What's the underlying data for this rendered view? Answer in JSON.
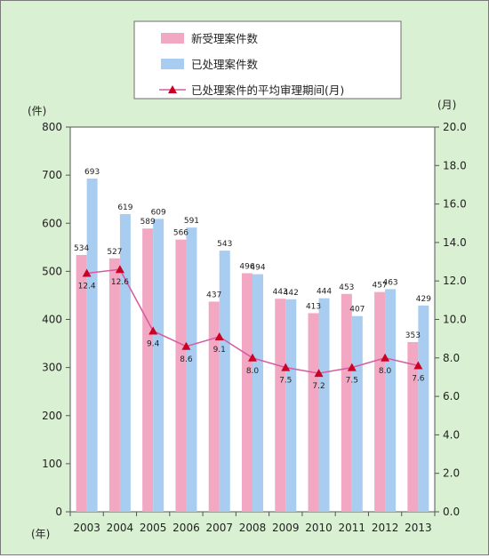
{
  "chart_data": {
    "type": "bar",
    "categories": [
      "2003",
      "2004",
      "2005",
      "2006",
      "2007",
      "2008",
      "2009",
      "2010",
      "2011",
      "2012",
      "2013"
    ],
    "series": [
      {
        "name": "新受理案件数",
        "kind": "bar",
        "axis": "left",
        "color": "#f2a7c3",
        "values": [
          534,
          527,
          589,
          566,
          437,
          496,
          443,
          413,
          453,
          457,
          353
        ]
      },
      {
        "name": "已处理案件数",
        "kind": "bar",
        "axis": "left",
        "color": "#a9cdf0",
        "values": [
          693,
          619,
          609,
          591,
          543,
          494,
          442,
          444,
          407,
          463,
          429
        ]
      },
      {
        "name": "已处理案件的平均审理期间(月)",
        "kind": "line",
        "axis": "right",
        "color": "#c8006a",
        "values": [
          12.4,
          12.6,
          9.4,
          8.6,
          9.1,
          8.0,
          7.5,
          7.2,
          7.5,
          8.0,
          7.6
        ]
      }
    ],
    "y_left": {
      "unit_label": "(件)",
      "range": [
        0,
        800
      ],
      "ticks": [
        0,
        100,
        200,
        300,
        400,
        500,
        600,
        700,
        800
      ]
    },
    "y_right": {
      "unit_label": "(月)",
      "range": [
        0,
        20
      ],
      "ticks": [
        "0.0",
        "2.0",
        "4.0",
        "6.0",
        "8.0",
        "10.0",
        "12.0",
        "14.0",
        "16.0",
        "18.0",
        "20.0"
      ]
    },
    "x_unit_label": "(年)",
    "grid": false,
    "legend_position": "top-center"
  }
}
